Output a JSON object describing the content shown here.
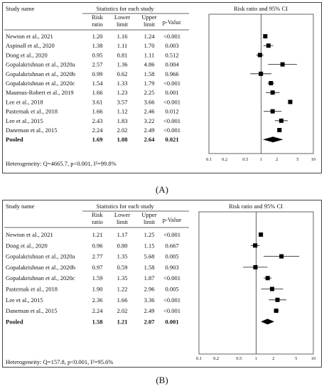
{
  "figure": {
    "panel_a_label": "(A)",
    "panel_b_label": "(B)"
  },
  "chart_data": [
    {
      "type": "forest",
      "header": {
        "study_name": "Study name",
        "group": "Statistics for each study",
        "plot_title": "Risk ratio and 95% CI",
        "col_rr": [
          "Risk",
          "ratio"
        ],
        "col_lower": [
          "Lower",
          "limit"
        ],
        "col_upper": [
          "Upper",
          "limit"
        ],
        "col_p": "p-Valuc"
      },
      "x_scale": "log",
      "xlim": [
        0.1,
        10
      ],
      "ticks": [
        "0.1",
        "0.2",
        "0.5",
        "1",
        "2",
        "5",
        "10"
      ],
      "tick_values": [
        0.1,
        0.2,
        0.5,
        1,
        2,
        5,
        10
      ],
      "studies": [
        {
          "name": "Newton et al., 2021",
          "rr": "1.20",
          "lower": "1.16",
          "upper": "1.24",
          "p": "<0.001"
        },
        {
          "name": "Aspinall et al., 2020",
          "rr": "1.38",
          "lower": "1.11",
          "upper": "1.70",
          "p": "0.003"
        },
        {
          "name": "Dong et al., 2020",
          "rr": "0.95",
          "lower": "0.81",
          "upper": "1.11",
          "p": "0.512"
        },
        {
          "name": "Gopalakrishnan et al., 2020a",
          "rr": "2.57",
          "lower": "1.36",
          "upper": "4.86",
          "p": "0.004"
        },
        {
          "name": "Gopalakrishnan et al., 2020b",
          "rr": "0.99",
          "lower": "0.62",
          "upper": "1.58",
          "p": "0.966"
        },
        {
          "name": "Gopalakrishnan et al., 2020c",
          "rr": "1.54",
          "lower": "1.33",
          "upper": "1.79",
          "p": "<0.001"
        },
        {
          "name": "Maumus-Robert et al., 2019",
          "rr": "1.66",
          "lower": "1.23",
          "upper": "2.25",
          "p": "0.001"
        },
        {
          "name": "Lee et al., 2018",
          "rr": "3.61",
          "lower": "3.57",
          "upper": "3.66",
          "p": "<0.001"
        },
        {
          "name": "Pasternak et al., 2018",
          "rr": "1.66",
          "lower": "1.12",
          "upper": "2.46",
          "p": "0.012"
        },
        {
          "name": "Lee et al., 2015",
          "rr": "2.43",
          "lower": "1.83",
          "upper": "3.22",
          "p": "<0.001"
        },
        {
          "name": "Daneman et al., 2015",
          "rr": "2.24",
          "lower": "2.02",
          "upper": "2.49",
          "p": "<0.001"
        }
      ],
      "pooled": {
        "name": "Pooled",
        "rr": "1.69",
        "lower": "1.08",
        "upper": "2.64",
        "p": "0.021"
      },
      "heterogeneity": "Heterogeneity: Q=4665.7, p<0.001, I²=99.8%"
    },
    {
      "type": "forest",
      "header": {
        "study_name": "Study name",
        "group": "Statistics for each study",
        "plot_title": "Risk ratio and 95% CI",
        "col_rr": [
          "Risk",
          "ratio"
        ],
        "col_lower": [
          "Lower",
          "limit"
        ],
        "col_upper": [
          "Upper",
          "limit"
        ],
        "col_p": "p-Value"
      },
      "x_scale": "log",
      "xlim": [
        0.1,
        10
      ],
      "ticks": [
        "0.1",
        "0.2",
        "0.5",
        "1",
        "2",
        "5",
        "10"
      ],
      "tick_values": [
        0.1,
        0.2,
        0.5,
        1,
        2,
        5,
        10
      ],
      "studies": [
        {
          "name": "Newton et al., 2021",
          "rr": "1.21",
          "lower": "1.17",
          "upper": "1.25",
          "p": "<0.001"
        },
        {
          "name": "Dong et al., 2020",
          "rr": "0.96",
          "lower": "0.80",
          "upper": "1.15",
          "p": "0.667"
        },
        {
          "name": "Gopalakrishnan et al., 2020a",
          "rr": "2.77",
          "lower": "1.35",
          "upper": "5.68",
          "p": "0.005"
        },
        {
          "name": "Gopalakrishnan et al., 2020b",
          "rr": "0.97",
          "lower": "0.59",
          "upper": "1.58",
          "p": "0.903"
        },
        {
          "name": "Gopalakrishnan et al., 2020c",
          "rr": "1.59",
          "lower": "1.35",
          "upper": "1.87",
          "p": "<0.001"
        },
        {
          "name": "Pasternak et al., 2018",
          "rr": "1.90",
          "lower": "1.22",
          "upper": "2.96",
          "p": "0.005"
        },
        {
          "name": "Lee et al., 2015",
          "rr": "2.36",
          "lower": "1.66",
          "upper": "3.36",
          "p": "<0.001"
        },
        {
          "name": "Daneman et al., 2015",
          "rr": "2.24",
          "lower": "2.02",
          "upper": "2.49",
          "p": "<0.001"
        }
      ],
      "pooled": {
        "name": "Pooled",
        "rr": "1.58",
        "lower": "1.21",
        "upper": "2.07",
        "p": "0.001"
      },
      "heterogeneity": "Heterogeneity: Q=157.8, p<0.001, I²=95.6%"
    }
  ]
}
